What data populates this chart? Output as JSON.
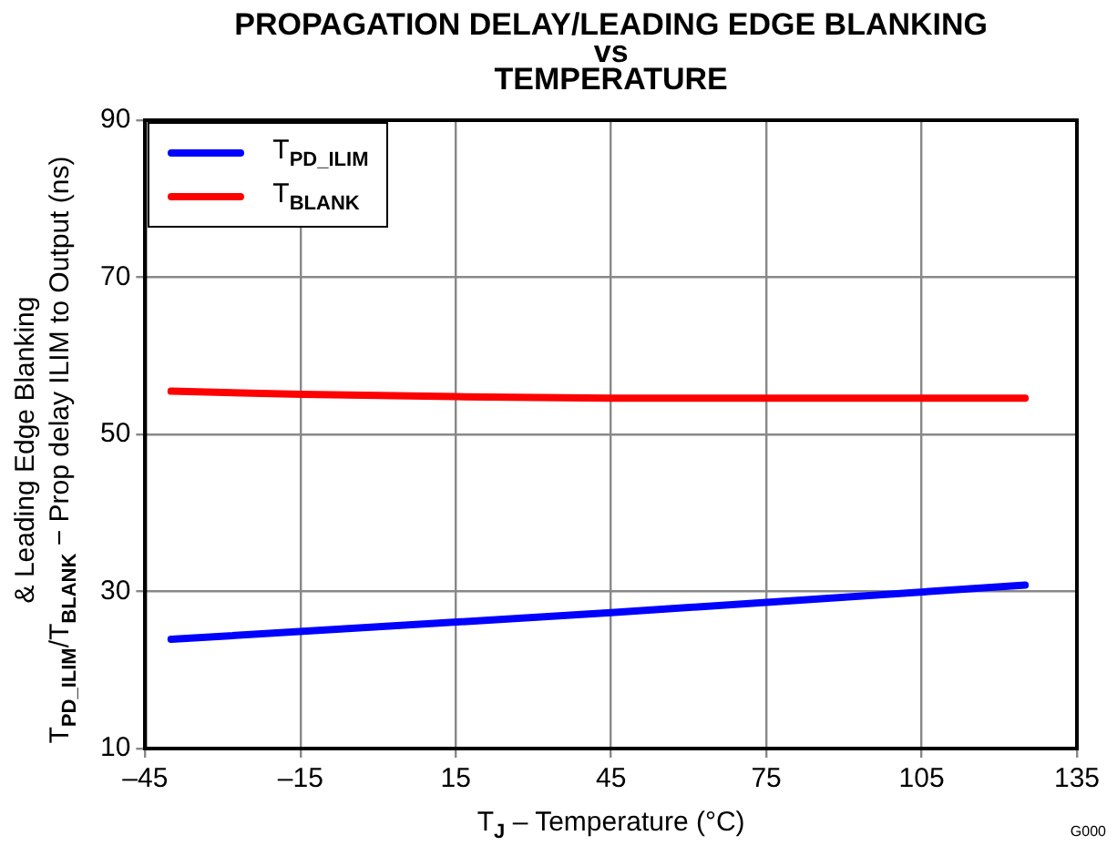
{
  "chart_data": {
    "type": "line",
    "title": "PROPAGATION DELAY/LEADING EDGE BLANKING\nvs\nTEMPERATURE",
    "xlabel": "T$_{J}$ – Temperature (°C)",
    "ylabel": "& Leading Edge Blanking\nT$_{PD_ILIM}$/T$_{BLANK}$ − Prop delay ILIM to Output (ns)",
    "series": [
      {
        "name": "T$_{PD_ILIM}$",
        "color": "#0000ff",
        "x": [
          -40,
          45,
          125
        ],
        "values": [
          23.9,
          27.3,
          30.8
        ]
      },
      {
        "name": "T$_{BLANK}$",
        "color": "#ff0000",
        "x": [
          -40,
          -15,
          15,
          45,
          75,
          125
        ],
        "values": [
          55.5,
          55.1,
          54.8,
          54.6,
          54.6,
          54.6
        ]
      }
    ],
    "xlim": [
      -45,
      135
    ],
    "xticks": [
      {
        "value": -45,
        "label": "–45"
      },
      {
        "value": -15,
        "label": "–15"
      },
      15,
      45,
      75,
      105,
      135
    ],
    "ylim": [
      10,
      90
    ],
    "yticks": [
      10,
      30,
      50,
      70,
      90
    ],
    "grid": true,
    "legend": "top left",
    "marker": "none",
    "line_style": "solid",
    "annotations": [
      "G000"
    ]
  }
}
